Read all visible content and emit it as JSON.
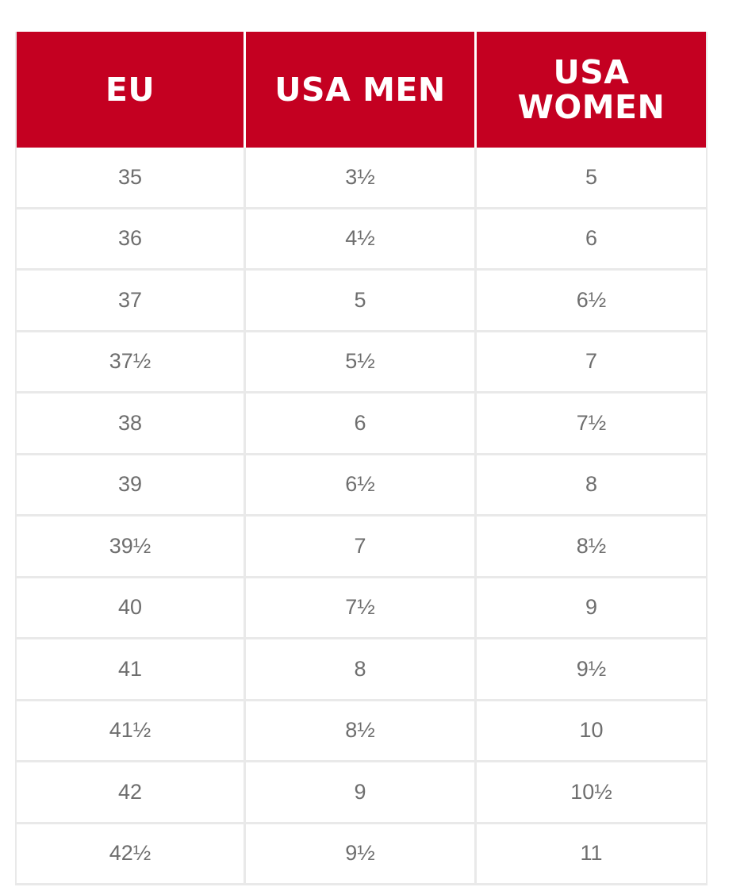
{
  "table": {
    "headers": [
      "EU",
      "USA MEN",
      "USA WOMEN"
    ],
    "rows": [
      [
        "35",
        "3½",
        "5"
      ],
      [
        "36",
        "4½",
        "6"
      ],
      [
        "37",
        "5",
        "6½"
      ],
      [
        "37½",
        "5½",
        "7"
      ],
      [
        "38",
        "6",
        "7½"
      ],
      [
        "39",
        "6½",
        "8"
      ],
      [
        "39½",
        "7",
        "8½"
      ],
      [
        "40",
        "7½",
        "9"
      ],
      [
        "41",
        "8",
        "9½"
      ],
      [
        "41½",
        "8½",
        "10"
      ],
      [
        "42",
        "9",
        "10½"
      ],
      [
        "42½",
        "9½",
        "11"
      ]
    ]
  },
  "colors": {
    "header_bg": "#c40021",
    "header_text": "#ffffff",
    "cell_text": "#6e6e6e",
    "grid": "#e9e9e9"
  }
}
